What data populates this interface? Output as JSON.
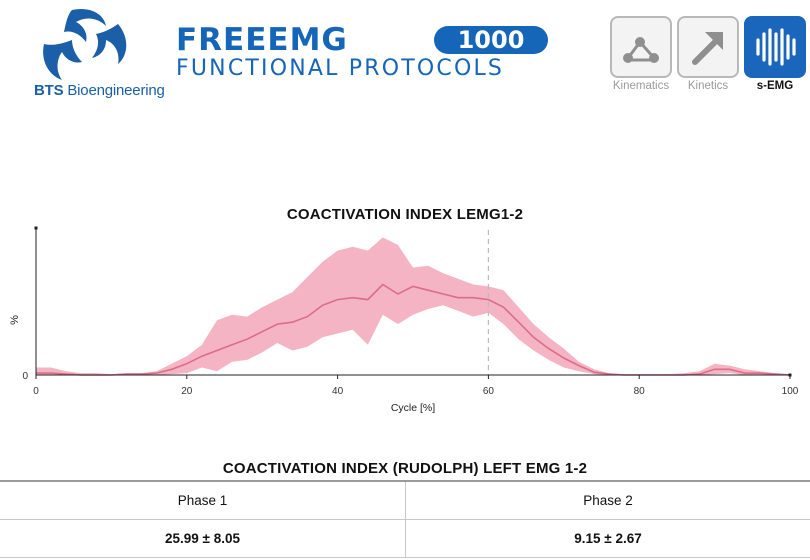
{
  "header": {
    "brand_name_bold": "BTS",
    "brand_name": "Bioengineering",
    "product_name": "FREEEMG",
    "product_model": "1000",
    "product_subtitle": "FUNCTIONAL PROTOCOLS",
    "modes": [
      {
        "label": "Kinematics",
        "icon": "kinematics-icon",
        "active": false
      },
      {
        "label": "Kinetics",
        "icon": "kinetics-arrow-icon",
        "active": false
      },
      {
        "label": "s-EMG",
        "icon": "emg-signal-icon",
        "active": true
      }
    ]
  },
  "chart_data": {
    "type": "area",
    "title": "COACTIVATION INDEX LEMG1-2",
    "xlabel": "Cycle [%]",
    "ylabel": "%",
    "xlim": [
      0,
      100
    ],
    "x_ticks": [
      "0",
      "20",
      "40",
      "60",
      "80",
      "100"
    ],
    "y_ticks": [
      "0"
    ],
    "grid": false,
    "colors": {
      "band": "#f2a7b8",
      "mean": "#dc6d8a",
      "marker": "#bbbbbb"
    },
    "marker_line_x": 60,
    "series": [
      {
        "x": [
          0,
          2,
          4,
          6,
          8,
          10,
          12,
          14,
          16,
          18,
          20,
          22,
          24,
          26,
          28,
          30,
          32,
          34,
          36,
          38,
          40,
          42,
          44,
          46,
          48,
          50,
          52,
          54,
          56,
          58,
          60,
          62,
          64,
          66,
          68,
          70,
          72,
          74,
          76,
          78,
          80,
          82,
          84,
          86,
          88,
          90,
          92,
          94,
          96,
          98,
          100
        ],
        "mean": [
          1,
          1,
          0.5,
          0,
          0,
          0,
          0.5,
          0.5,
          1,
          3,
          6,
          10,
          13,
          16,
          19,
          23,
          27,
          28,
          31,
          37,
          40,
          41,
          40,
          48,
          43,
          47,
          45,
          43,
          41,
          41,
          40,
          36,
          28,
          20,
          14,
          9,
          5,
          1.5,
          0.5,
          0,
          0,
          0,
          0,
          0,
          0.5,
          3,
          3,
          1,
          1,
          0.5,
          0
        ],
        "upper": [
          4,
          4,
          2,
          1,
          1,
          0.5,
          1,
          1,
          2,
          6,
          10,
          16,
          29,
          32,
          31,
          36,
          40,
          44,
          52,
          60,
          66,
          68,
          66,
          73,
          69,
          57,
          58,
          54,
          51,
          48,
          47,
          45,
          36,
          27,
          20,
          14,
          7,
          3,
          1,
          0.5,
          0.5,
          0.5,
          0.5,
          1,
          2,
          6,
          5,
          3,
          2,
          1,
          0.5
        ],
        "lower": [
          0,
          0,
          0,
          0,
          0,
          0,
          0,
          0,
          0,
          0.5,
          1,
          4,
          2,
          7,
          8,
          12,
          17,
          13,
          15,
          20,
          22,
          24,
          16,
          32,
          27,
          32,
          35,
          37,
          34,
          31,
          33,
          27,
          19,
          13,
          8,
          4,
          2,
          0.5,
          0,
          0,
          0,
          0,
          0,
          0,
          0,
          0.5,
          1,
          0,
          0,
          0,
          0
        ]
      }
    ],
    "table": {
      "title": "COACTIVATION INDEX (RUDOLPH) LEFT EMG 1-2",
      "columns": [
        "Phase 1",
        "Phase 2"
      ],
      "values": [
        "25.99 ± 8.05",
        "9.15 ± 2.67"
      ]
    }
  }
}
